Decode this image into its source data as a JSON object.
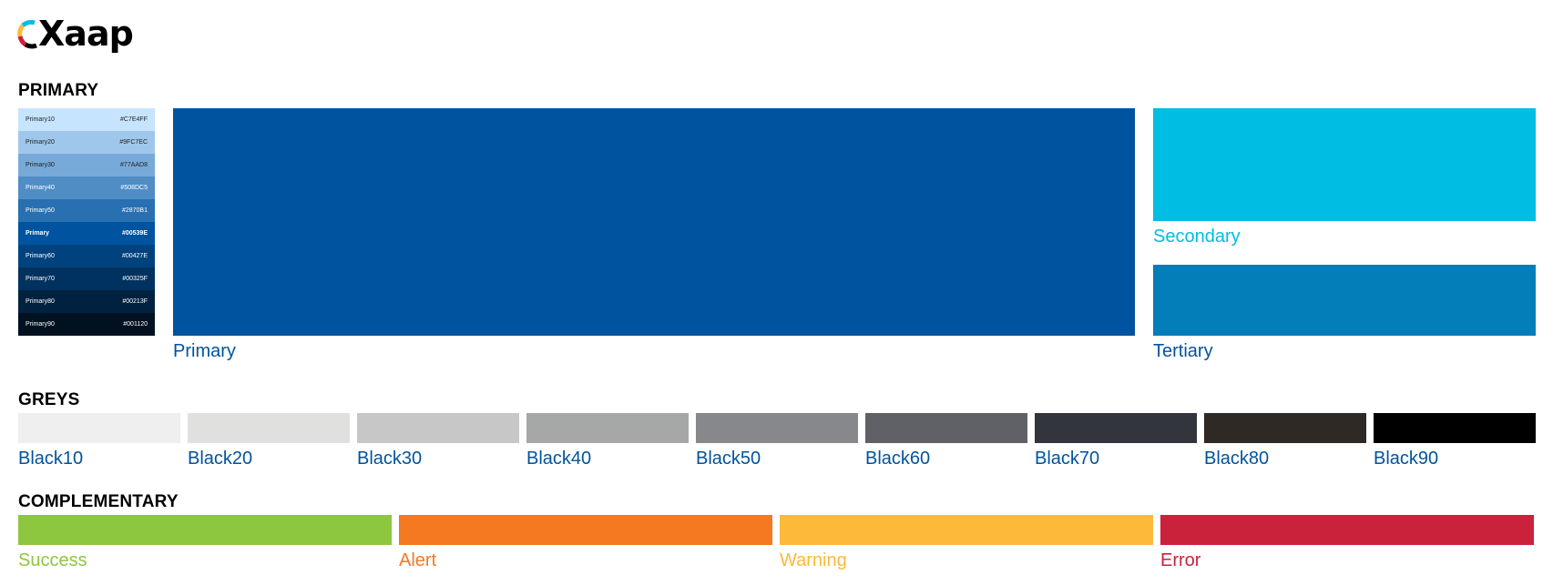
{
  "logo": {
    "wordmark": "Xaap"
  },
  "sections": {
    "primary": "PRIMARY",
    "greys": "GREYS",
    "complementary": "COMPLEMENTARY"
  },
  "primary_palette": [
    {
      "name": "Primary10",
      "hex": "#C7E4FF",
      "color": "#C7E4FF",
      "text_color": "#222222"
    },
    {
      "name": "Primary20",
      "hex": "#9FC7EC",
      "color": "#9FC7EC",
      "text_color": "#222222"
    },
    {
      "name": "Primary30",
      "hex": "#77AAD8",
      "color": "#77AAD8",
      "text_color": "#222222"
    },
    {
      "name": "Primary40",
      "hex": "#508DC5",
      "color": "#508DC5",
      "text_color": "#ffffff"
    },
    {
      "name": "Primary50",
      "hex": "#2870B1",
      "color": "#2870B1",
      "text_color": "#ffffff"
    },
    {
      "name": "Primary",
      "hex": "#00539E",
      "color": "#00539E",
      "text_color": "#ffffff",
      "bold": true
    },
    {
      "name": "Primary60",
      "hex": "#00427E",
      "color": "#00427E",
      "text_color": "#ffffff"
    },
    {
      "name": "Primary70",
      "hex": "#00325F",
      "color": "#00325F",
      "text_color": "#ffffff"
    },
    {
      "name": "Primary80",
      "hex": "#00213F",
      "color": "#00213F",
      "text_color": "#ffffff"
    },
    {
      "name": "Primary90",
      "hex": "#001120",
      "color": "#001120",
      "text_color": "#ffffff"
    }
  ],
  "main_swatches": {
    "primary": {
      "label": "Primary",
      "color": "#00539E",
      "label_color": "#00539E"
    },
    "secondary": {
      "label": "Secondary",
      "color": "#00BDE3",
      "label_color": "#00BDE3"
    },
    "tertiary": {
      "label": "Tertiary",
      "color": "#037EB9",
      "label_color": "#00539E"
    }
  },
  "greys": [
    {
      "label": "Black10",
      "color": "#EFEFEF"
    },
    {
      "label": "Black20",
      "color": "#E0E0DF"
    },
    {
      "label": "Black30",
      "color": "#C6C7C6"
    },
    {
      "label": "Black40",
      "color": "#A6A8A8"
    },
    {
      "label": "Black50",
      "color": "#87888B"
    },
    {
      "label": "Black60",
      "color": "#606166"
    },
    {
      "label": "Black70",
      "color": "#33353D"
    },
    {
      "label": "Black80",
      "color": "#2F2925"
    },
    {
      "label": "Black90",
      "color": "#000000"
    }
  ],
  "grey_label_color": "#00539E",
  "complementary": [
    {
      "label": "Success",
      "color": "#8DC63F"
    },
    {
      "label": "Alert",
      "color": "#F47920"
    },
    {
      "label": "Warning",
      "color": "#FDB93A"
    },
    {
      "label": "Error",
      "color": "#C9223A"
    }
  ]
}
